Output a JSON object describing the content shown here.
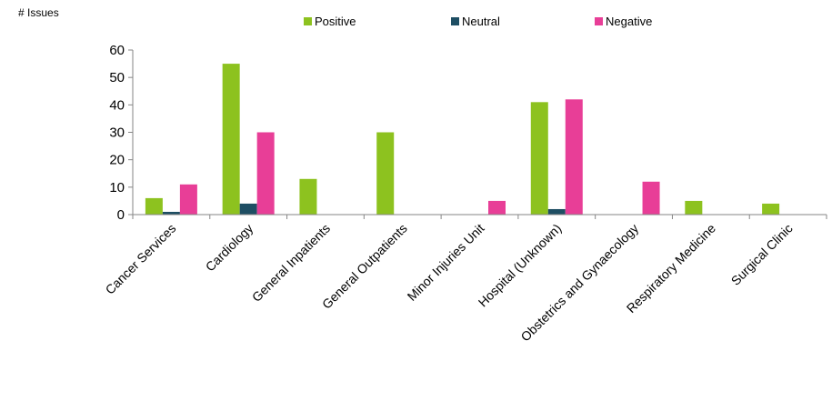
{
  "chart_data": {
    "type": "bar",
    "title": "",
    "ylabel": "# Issues",
    "xlabel": "",
    "ylim": [
      0,
      60
    ],
    "yticks": [
      0,
      10,
      20,
      30,
      40,
      50,
      60
    ],
    "grid": false,
    "legend": "top",
    "categories": [
      "Cancer Services",
      "Cardiology",
      "General Inpatients",
      "General Outpatients",
      "Minor Injuries Unit",
      "Hospital (Unknown)",
      "Obstetrics and Gynaecology",
      "Respiratory Medicine",
      "Surgical Clinic"
    ],
    "series": [
      {
        "name": "Positive",
        "color": "#8dc21f",
        "values": [
          6,
          55,
          13,
          30,
          0,
          41,
          0,
          5,
          4
        ]
      },
      {
        "name": "Neutral",
        "color": "#1e4e63",
        "values": [
          1,
          4,
          0,
          0,
          0,
          2,
          0,
          0,
          0
        ]
      },
      {
        "name": "Negative",
        "color": "#e83e97",
        "values": [
          11,
          30,
          0,
          0,
          5,
          42,
          12,
          0,
          0
        ]
      }
    ]
  }
}
